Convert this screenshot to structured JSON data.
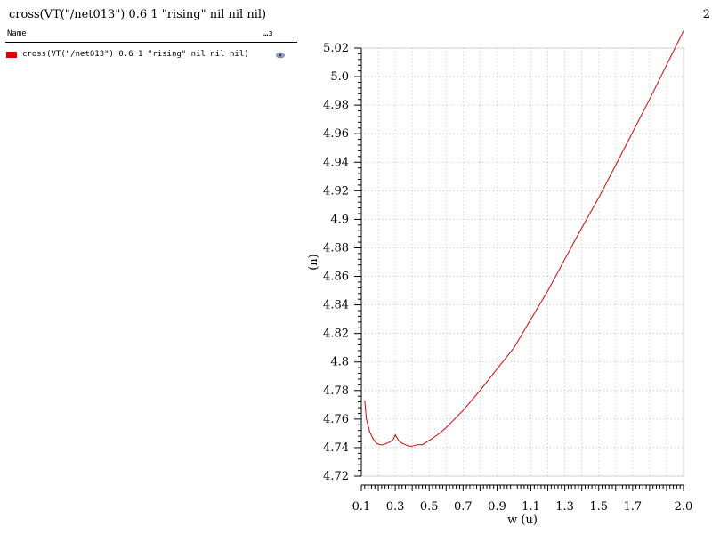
{
  "header": {
    "title": "cross(VT(\"/net013\") 0.6 1 \"rising\" nil nil nil)",
    "page_number": "2"
  },
  "legend": {
    "name_header": "Name",
    "extra_header": "…з",
    "items": [
      {
        "label": "cross(VT(\"/net013\") 0.6 1 \"rising\" nil nil nil)",
        "color": "#dd0000",
        "icon": "eye-icon"
      }
    ]
  },
  "chart_data": {
    "type": "line",
    "title": "cross(VT(\"/net013\") 0.6 1 \"rising\" nil nil nil)",
    "xlabel": "w (u)",
    "ylabel": "(n)",
    "xlim": [
      0.1,
      2.0
    ],
    "ylim": [
      4.72,
      5.02
    ],
    "x_ticks": [
      0.1,
      0.3,
      0.5,
      0.7,
      0.9,
      1.1,
      1.3,
      1.5,
      1.7,
      2.0
    ],
    "x_tick_labels": [
      "0.1",
      "0.3",
      "0.5",
      "0.7",
      "0.9",
      "1.1",
      "1.3",
      "1.5",
      "1.7",
      "2.0"
    ],
    "y_ticks": [
      4.72,
      4.74,
      4.76,
      4.78,
      4.8,
      4.82,
      4.84,
      4.86,
      4.88,
      4.9,
      4.92,
      4.94,
      4.96,
      4.98,
      5.0,
      5.02
    ],
    "y_tick_labels": [
      "4.72",
      "4.74",
      "4.76",
      "4.78",
      "4.8",
      "4.82",
      "4.84",
      "4.86",
      "4.88",
      "4.9",
      "4.92",
      "4.94",
      "4.96",
      "4.98",
      "5.0",
      "5.02"
    ],
    "grid": true,
    "series": [
      {
        "name": "cross(VT(\"/net013\") 0.6 1 \"rising\" nil nil nil)",
        "color": "#dd0000",
        "x": [
          0.12,
          0.13,
          0.15,
          0.17,
          0.19,
          0.21,
          0.23,
          0.25,
          0.27,
          0.29,
          0.3,
          0.32,
          0.34,
          0.36,
          0.38,
          0.4,
          0.43,
          0.46,
          0.5,
          0.55,
          0.6,
          0.7,
          0.8,
          0.9,
          1.0,
          1.1,
          1.2,
          1.3,
          1.4,
          1.5,
          1.6,
          1.7,
          1.8,
          1.9,
          2.0
        ],
        "y": [
          4.773,
          4.76,
          4.751,
          4.746,
          4.743,
          4.742,
          4.742,
          4.743,
          4.744,
          4.746,
          4.749,
          4.745,
          4.743,
          4.742,
          4.741,
          4.741,
          4.742,
          4.742,
          4.745,
          4.749,
          4.754,
          4.766,
          4.78,
          4.795,
          4.81,
          4.83,
          4.85,
          4.872,
          4.894,
          4.915,
          4.938,
          4.961,
          4.984,
          5.008,
          5.032
        ]
      }
    ]
  }
}
